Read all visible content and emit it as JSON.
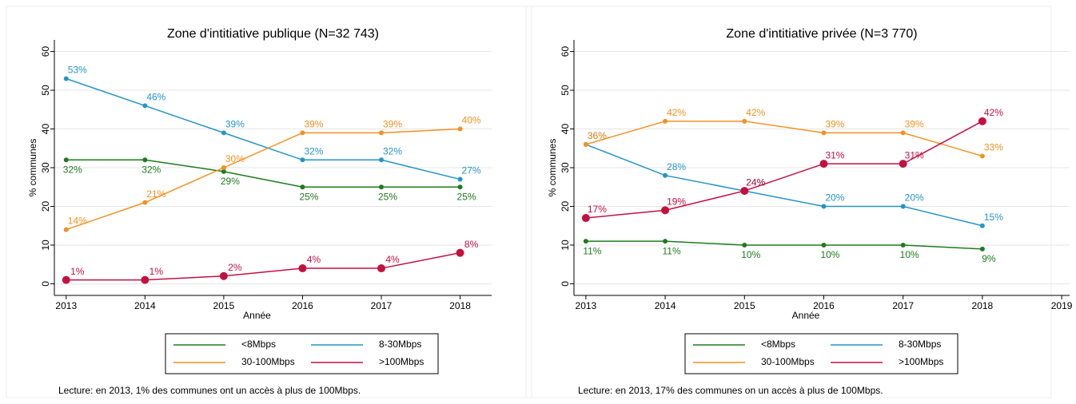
{
  "chart_data": [
    {
      "type": "line",
      "title": "Zone d'intitiative publique (N=32 743)",
      "x_label": "Année",
      "y_label": "% communes",
      "x": [
        2013,
        2014,
        2015,
        2016,
        2017,
        2018
      ],
      "xlim": [
        2012.85,
        2018.4
      ],
      "xticks": [
        2013,
        2014,
        2015,
        2016,
        2017,
        2018
      ],
      "ylim": [
        -3,
        63
      ],
      "yticks": [
        0,
        10,
        20,
        30,
        40,
        50,
        60
      ],
      "grid": true,
      "legend": "bottom",
      "series": [
        {
          "name": "<8Mbps",
          "color": "#1e7b1e",
          "values": [
            32,
            32,
            29,
            25,
            25,
            25
          ],
          "value_labels": [
            "32%",
            "32%",
            "29%",
            "25%",
            "25%",
            "25%"
          ]
        },
        {
          "name": "8-30Mbps",
          "color": "#2495c8",
          "values": [
            53,
            46,
            39,
            32,
            32,
            27
          ],
          "value_labels": [
            "53%",
            "46%",
            "39%",
            "32%",
            "32%",
            "27%"
          ]
        },
        {
          "name": "30-100Mbps",
          "color": "#f39020",
          "values": [
            14,
            21,
            30,
            39,
            39,
            40
          ],
          "value_labels": [
            "14%",
            "21%",
            "30%",
            "39%",
            "39%",
            "40%"
          ]
        },
        {
          "name": ">100Mbps",
          "color": "#c4103f",
          "values": [
            1,
            1,
            2,
            4,
            4,
            8
          ],
          "value_labels": [
            "1%",
            "1%",
            "2%",
            "4%",
            "4%",
            "8%"
          ]
        }
      ],
      "note": "Lecture: en 2013, 1% des communes ont un accès à plus de 100Mbps."
    },
    {
      "type": "line",
      "title": "Zone d'intitiative privée (N=3 770)",
      "x_label": "Année",
      "y_label": "% communes",
      "x": [
        2013,
        2014,
        2015,
        2016,
        2017,
        2018
      ],
      "xlim": [
        2012.85,
        2019.1
      ],
      "xticks": [
        2013,
        2014,
        2015,
        2016,
        2017,
        2018,
        2019
      ],
      "ylim": [
        -3,
        63
      ],
      "yticks": [
        0,
        10,
        20,
        30,
        40,
        50,
        60
      ],
      "grid": true,
      "legend": "bottom",
      "series": [
        {
          "name": "<8Mbps",
          "color": "#1e7b1e",
          "values": [
            11,
            11,
            10,
            10,
            10,
            9
          ],
          "value_labels": [
            "11%",
            "11%",
            "10%",
            "10%",
            "10%",
            "9%"
          ]
        },
        {
          "name": "8-30Mbps",
          "color": "#2495c8",
          "values": [
            36,
            28,
            24,
            20,
            20,
            15
          ],
          "value_labels": [
            "36%",
            "28%",
            "24%",
            "20%",
            "20%",
            "15%"
          ]
        },
        {
          "name": "30-100Mbps",
          "color": "#f39020",
          "values": [
            36,
            42,
            42,
            39,
            39,
            33
          ],
          "value_labels": [
            "36%",
            "42%",
            "42%",
            "39%",
            "39%",
            "33%"
          ]
        },
        {
          "name": ">100Mbps",
          "color": "#c4103f",
          "values": [
            17,
            19,
            24,
            31,
            31,
            42
          ],
          "value_labels": [
            "17%",
            "19%",
            "24%",
            "31%",
            "31%",
            "42%"
          ]
        }
      ],
      "note": "Lecture: en 2013, 17% des communes on un accès à plus de 100Mbps."
    }
  ]
}
